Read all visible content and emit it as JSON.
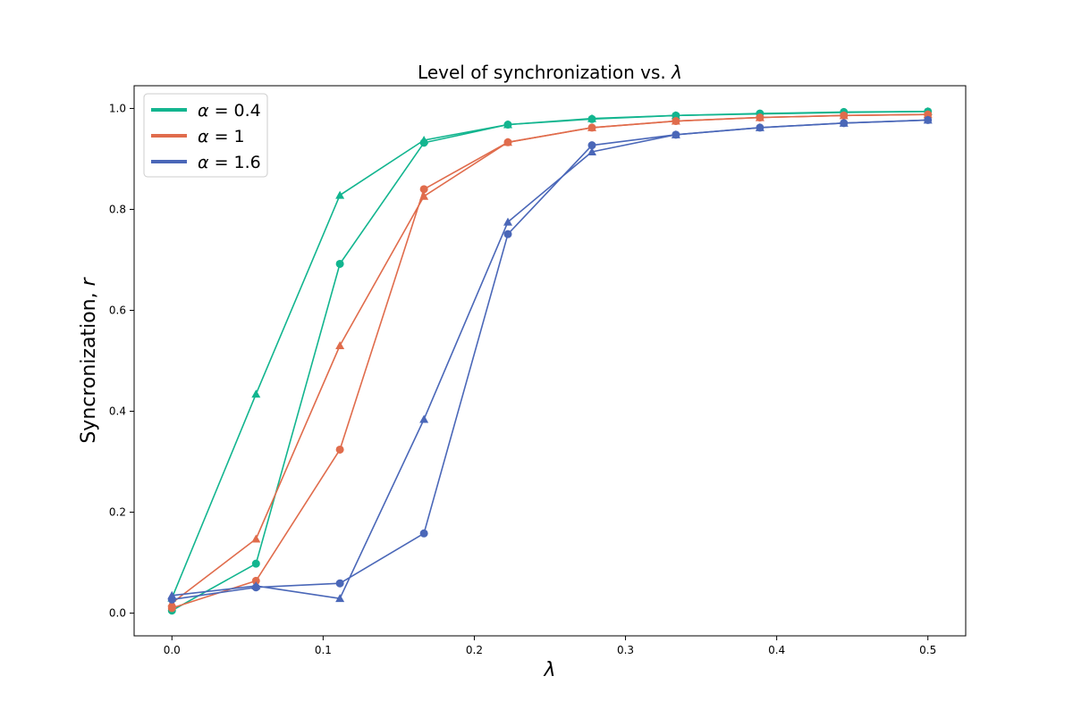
{
  "chart_data": {
    "type": "line",
    "title": "Level of synchronization vs. λ",
    "title_parts": {
      "text": "Level of synchronization vs. ",
      "symbol": "λ"
    },
    "xlabel": "λ",
    "ylabel": "Syncronization, r",
    "ylabel_parts": {
      "text": "Syncronization, ",
      "symbol": "r"
    },
    "xlim": [
      -0.025,
      0.525
    ],
    "ylim": [
      -0.045,
      1.045
    ],
    "x_ticks": [
      0.0,
      0.1,
      0.2,
      0.3,
      0.4,
      0.5
    ],
    "x_tick_labels": [
      "0.0",
      "0.1",
      "0.2",
      "0.3",
      "0.4",
      "0.5"
    ],
    "y_ticks": [
      0.0,
      0.2,
      0.4,
      0.6,
      0.8,
      1.0
    ],
    "y_tick_labels": [
      "0.0",
      "0.2",
      "0.4",
      "0.6",
      "0.8",
      "1.0"
    ],
    "grid": false,
    "legend_placement": "top-left",
    "x": [
      0.0,
      0.0556,
      0.1111,
      0.1667,
      0.2222,
      0.2778,
      0.3333,
      0.3889,
      0.4444,
      0.5
    ],
    "series": [
      {
        "name": "α = 0.4",
        "legend_symbol": "α",
        "legend_value": "0.4",
        "color": "#12b58f",
        "marker": "circle",
        "values": [
          0.005,
          0.098,
          0.692,
          0.932,
          0.968,
          0.979,
          0.986,
          0.99,
          0.993,
          0.994
        ]
      },
      {
        "name": "α = 0.4",
        "legend_symbol": "α",
        "legend_value": "0.4",
        "color": "#12b58f",
        "marker": "triangle",
        "values": [
          0.03,
          0.434,
          0.828,
          0.937,
          0.968,
          0.98,
          0.986,
          0.989,
          0.992,
          0.994
        ]
      },
      {
        "name": "α = 1",
        "legend_symbol": "α",
        "legend_value": "1",
        "color": "#e06c4c",
        "marker": "circle",
        "values": [
          0.01,
          0.064,
          0.324,
          0.84,
          0.933,
          0.962,
          0.975,
          0.982,
          0.986,
          0.988
        ]
      },
      {
        "name": "α = 1",
        "legend_symbol": "α",
        "legend_value": "1",
        "color": "#e06c4c",
        "marker": "triangle",
        "values": [
          0.02,
          0.147,
          0.53,
          0.826,
          0.933,
          0.962,
          0.975,
          0.982,
          0.986,
          0.988
        ]
      },
      {
        "name": "α = 1.6",
        "legend_symbol": "α",
        "legend_value": "1.6",
        "color": "#4a67b8",
        "marker": "circle",
        "values": [
          0.027,
          0.051,
          0.059,
          0.158,
          0.751,
          0.927,
          0.948,
          0.962,
          0.971,
          0.977
        ]
      },
      {
        "name": "α = 1.6",
        "legend_symbol": "α",
        "legend_value": "1.6",
        "color": "#4a67b8",
        "marker": "triangle",
        "values": [
          0.035,
          0.054,
          0.029,
          0.384,
          0.775,
          0.914,
          0.948,
          0.962,
          0.971,
          0.977
        ]
      }
    ],
    "legend": [
      {
        "symbol": "α",
        "value": "0.4",
        "color": "#12b58f"
      },
      {
        "symbol": "α",
        "value": "1",
        "color": "#e06c4c"
      },
      {
        "symbol": "α",
        "value": "1.6",
        "color": "#4a67b8"
      }
    ]
  }
}
